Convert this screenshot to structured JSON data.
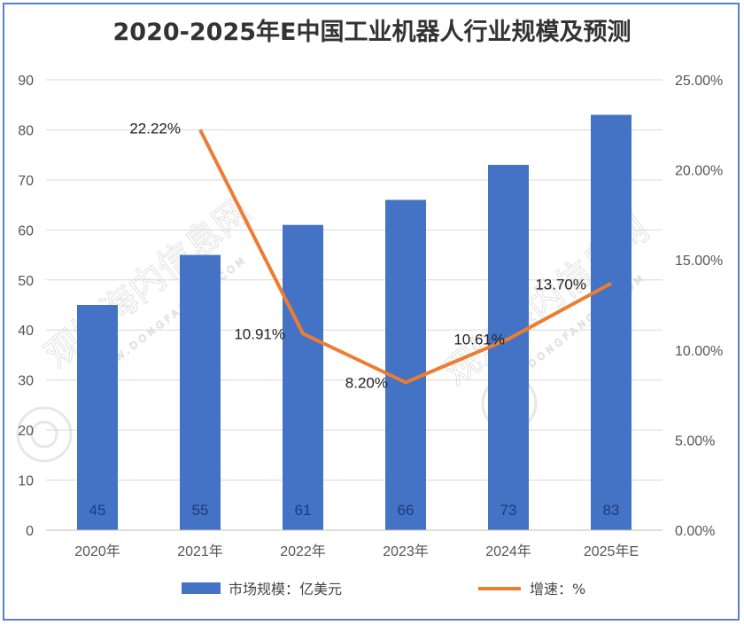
{
  "chart_data": {
    "type": "bar",
    "title": "2020-2025年E中国工业机器人行业规模及预测",
    "categories": [
      "2020年",
      "2021年",
      "2022年",
      "2023年",
      "2024年",
      "2025年E"
    ],
    "series": [
      {
        "name": "市场规模：亿美元",
        "type": "bar",
        "axis": "left",
        "values": [
          45,
          55,
          61,
          66,
          73,
          83
        ],
        "color": "#4472c4"
      },
      {
        "name": "增速：%",
        "type": "line",
        "axis": "right",
        "values": [
          null,
          22.22,
          10.91,
          8.2,
          10.61,
          13.7
        ],
        "labels": [
          "",
          "22.22%",
          "10.91%",
          "8.20%",
          "10.61%",
          "13.70%"
        ],
        "color": "#ed7d31"
      }
    ],
    "ylim_left": [
      0,
      90
    ],
    "yticks_left": [
      "0",
      "10",
      "20",
      "30",
      "40",
      "50",
      "60",
      "70",
      "80",
      "90"
    ],
    "ylim_right": [
      0,
      25
    ],
    "yticks_right": [
      "0.00%",
      "5.00%",
      "10.00%",
      "15.00%",
      "20.00%",
      "25.00%"
    ],
    "grid": true,
    "legend": "bottom"
  },
  "watermark": {
    "text": "观知海内信息网",
    "subtext": "WWW.DONGFANGQB.COM"
  }
}
